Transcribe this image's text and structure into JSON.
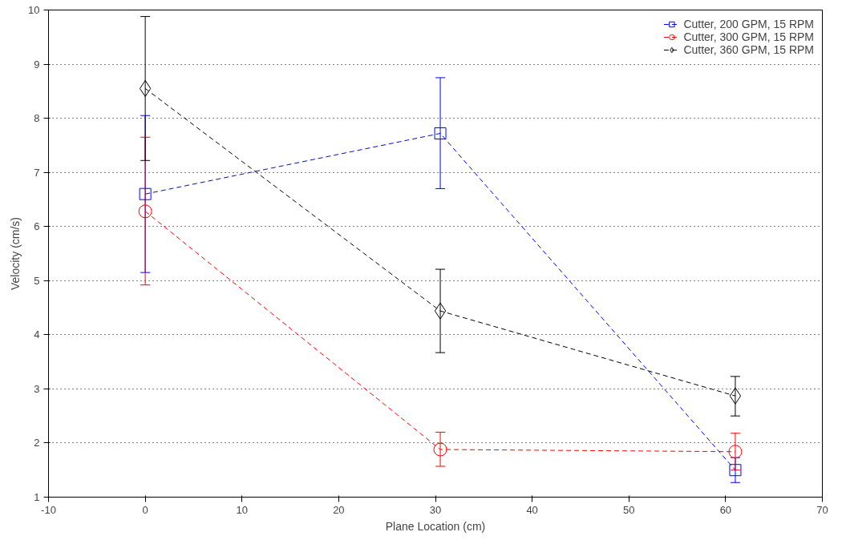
{
  "chart_data": {
    "type": "line",
    "xlabel": "Plane Location (cm)",
    "ylabel": "Velocity (cm/s)",
    "x": [
      0,
      30.5,
      61
    ],
    "series": [
      {
        "name": "Cutter, 200 GPM, 15 RPM",
        "color": "#0000ff",
        "marker": "square",
        "values": [
          6.6,
          7.72,
          1.5
        ],
        "errors": [
          [
            5.15,
            8.05
          ],
          [
            6.7,
            8.75
          ],
          [
            1.27,
            1.73
          ]
        ]
      },
      {
        "name": "Cutter, 300 GPM, 15 RPM",
        "color": "#ff0000",
        "marker": "circle",
        "values": [
          6.28,
          1.88,
          1.84
        ],
        "errors": [
          [
            4.92,
            7.65
          ],
          [
            1.57,
            2.2
          ],
          [
            1.5,
            2.18
          ]
        ]
      },
      {
        "name": "Cutter, 360 GPM, 15 RPM",
        "color": "#000000",
        "marker": "diamond",
        "values": [
          8.55,
          4.44,
          2.87
        ],
        "errors": [
          [
            7.22,
            9.88
          ],
          [
            3.67,
            5.21
          ],
          [
            2.5,
            3.23
          ]
        ]
      }
    ],
    "xlim": [
      -10,
      70
    ],
    "xticks": [
      -10,
      0,
      10,
      20,
      30,
      40,
      50,
      60,
      70
    ],
    "ylim": [
      1,
      10
    ],
    "yticks": [
      1,
      2,
      3,
      4,
      5,
      6,
      7,
      8,
      9,
      10
    ],
    "grid": "y",
    "legend": "top right",
    "line_style": "dashed"
  }
}
